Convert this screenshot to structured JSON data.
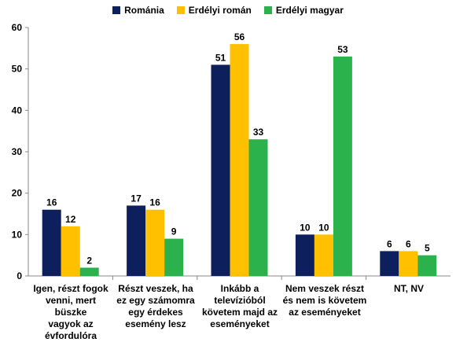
{
  "chart_data": {
    "type": "bar",
    "legend_position": "top",
    "ylim": [
      0,
      60
    ],
    "yticks": [
      0,
      10,
      20,
      30,
      40,
      50,
      60
    ],
    "categories": [
      "Igen, részt fogok\nvenni, mert büszke\nvagyok az\névfordulóra",
      "Részt veszek, ha\nez egy számomra\negy érdekes\nesemény lesz",
      "Inkább a\ntelevízióból\nkövetem majd az\neseményeket",
      "Nem veszek részt\nés nem is követem\naz eseményeket",
      "NT, NV"
    ],
    "series": [
      {
        "name": "Románia",
        "color": "#0d1f5c",
        "values": [
          16,
          17,
          51,
          10,
          6
        ]
      },
      {
        "name": "Erdélyi román",
        "color": "#ffc000",
        "values": [
          12,
          16,
          56,
          10,
          6
        ]
      },
      {
        "name": "Erdélyi magyar",
        "color": "#2bb24c",
        "values": [
          2,
          9,
          33,
          53,
          5
        ]
      }
    ]
  }
}
